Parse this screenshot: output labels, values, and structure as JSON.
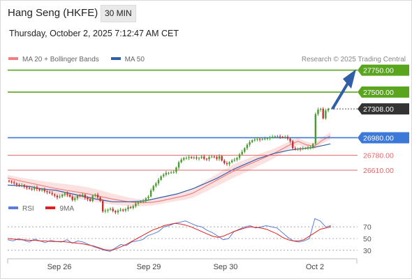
{
  "header": {
    "title": "Hang Seng (HKFE)",
    "timeframe": "30 MIN",
    "datetime": "Thursday, October 2, 2025 7:12:47 AM CET"
  },
  "legend": {
    "items": [
      {
        "label": "MA 20 + Bollinger Bands",
        "color": "#f08080"
      },
      {
        "label": "MA 50",
        "color": "#2e5fa8"
      }
    ],
    "credit": "Research © 2025 Trading Central"
  },
  "levels": [
    {
      "value": 27750,
      "label": "27750.00",
      "color": "#5aa51e",
      "style": "solid",
      "box": "green"
    },
    {
      "value": 27500,
      "label": "27500.00",
      "color": "#5aa51e",
      "style": "solid",
      "box": "green"
    },
    {
      "value": 27308,
      "label": "27308.00",
      "color": "#555555",
      "style": "dotted",
      "box": "dark"
    },
    {
      "value": 26980,
      "label": "26980.00",
      "color": "#3c78d8",
      "style": "solid",
      "box": "blue"
    },
    {
      "value": 26780,
      "label": "26780.00",
      "color": "#e06666",
      "style": "solid",
      "box": "none"
    },
    {
      "value": 26610,
      "label": "26610.00",
      "color": "#e06666",
      "style": "solid",
      "box": "none"
    }
  ],
  "rsi": {
    "legend": [
      {
        "label": "RSI",
        "color": "#5b7fd8"
      },
      {
        "label": "9MA",
        "color": "#e02020"
      }
    ],
    "ticks": [
      "70",
      "50",
      "30"
    ]
  },
  "chart_data": {
    "type": "candlestick",
    "x_labels": [
      "Sep 26",
      "Sep 29",
      "Sep 30",
      "Oct 2"
    ],
    "price_range": [
      26300,
      27850
    ],
    "close": [
      26480,
      26470,
      26460,
      26445,
      26430,
      26440,
      26420,
      26410,
      26400,
      26390,
      26415,
      26395,
      26380,
      26390,
      26370,
      26360,
      26350,
      26335,
      26320,
      26300,
      26310,
      26330,
      26345,
      26330,
      26310,
      26270,
      26290,
      26320,
      26315,
      26330,
      26295,
      26280,
      26260,
      26320,
      26330,
      26300,
      26260,
      26140,
      26150,
      26160,
      26170,
      26145,
      26130,
      26150,
      26160,
      26150,
      26165,
      26190,
      26180,
      26200,
      26230,
      26245,
      26250,
      26260,
      26290,
      26310,
      26380,
      26430,
      26460,
      26500,
      26540,
      26560,
      26580,
      26580,
      26585,
      26590,
      26640,
      26700,
      26730,
      26750,
      26750,
      26760,
      26750,
      26755,
      26745,
      26750,
      26765,
      26740,
      26735,
      26760,
      26765,
      26760,
      26740,
      26770,
      26720,
      26690,
      26680,
      26700,
      26720,
      26730,
      26750,
      26790,
      26820,
      26860,
      26900,
      26930,
      26950,
      26960,
      26965,
      26960,
      26965,
      26970,
      26975,
      26985,
      26990,
      26995,
      26995,
      26990,
      26985,
      26990,
      26970,
      26940,
      26860,
      26850,
      26855,
      26850,
      26860,
      26860,
      26870,
      26870,
      26910,
      27250,
      27300,
      27310,
      27200,
      27290,
      27308
    ],
    "ma20": [
      26520,
      26500,
      26480,
      26460,
      26440,
      26420,
      26400,
      26385,
      26370,
      26355,
      26340,
      26320,
      26300,
      26280,
      26265,
      26250,
      26240,
      26240,
      26245,
      26260,
      26280,
      26300,
      26320,
      26350,
      26400,
      26450,
      26500,
      26550,
      26600,
      26640,
      26680,
      26720,
      26760,
      26800,
      26850,
      26900,
      26940,
      26900,
      26880,
      26950,
      27000
    ],
    "ma50": [
      26440,
      26435,
      26430,
      26420,
      26400,
      26390,
      26380,
      26360,
      26340,
      26320,
      26300,
      26280,
      26265,
      26250,
      26250,
      26250,
      26255,
      26260,
      26280,
      26300,
      26320,
      26340,
      26370,
      26400,
      26440,
      26480,
      26520,
      26570,
      26620,
      26660,
      26700,
      26740,
      26770,
      26800,
      26820,
      26840,
      26850,
      26860,
      26870,
      26890,
      26910
    ],
    "rsi_range": [
      0,
      100
    ],
    "rsi": [
      48,
      46,
      50,
      47,
      44,
      49,
      46,
      43,
      47,
      45,
      44,
      48,
      42,
      46,
      44,
      40,
      36,
      33,
      30,
      28,
      34,
      40,
      38,
      44,
      46,
      48,
      55,
      58,
      62,
      70,
      72,
      76,
      78,
      80,
      76,
      72,
      70,
      64,
      60,
      54,
      48,
      50,
      62,
      66,
      70,
      72,
      68,
      70,
      72,
      70,
      68,
      60,
      52,
      46,
      44,
      46,
      50,
      84,
      80,
      70,
      72
    ],
    "rsi_ma": [
      50,
      49,
      48,
      48,
      47,
      47,
      46,
      46,
      45,
      45,
      45,
      44,
      43,
      42,
      41,
      39,
      37,
      34,
      31,
      30,
      32,
      36,
      40,
      45,
      50,
      55,
      60,
      65,
      68,
      72,
      74,
      76,
      75,
      73,
      70,
      66,
      62,
      58,
      54,
      52,
      54,
      58,
      62,
      65,
      68,
      70,
      69,
      68,
      66,
      62,
      58,
      52,
      48,
      46,
      46,
      48,
      54,
      60,
      66,
      68,
      70
    ]
  }
}
